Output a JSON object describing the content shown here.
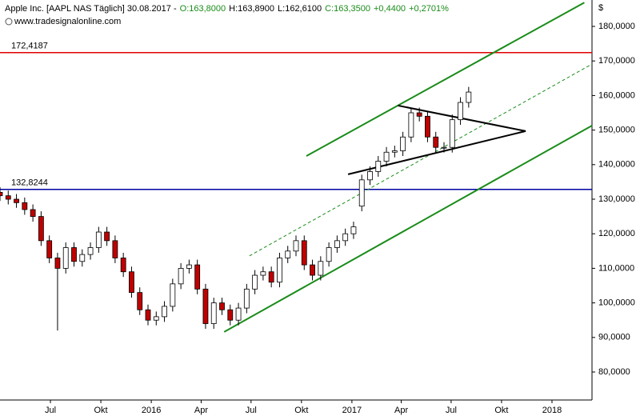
{
  "header": {
    "title": "Apple Inc. [AAPL NAS  Täglich] 30.08.2017 -",
    "open": "O:163,8000",
    "high": "H:163,8900",
    "low": "L:162,6100",
    "close": "C:163,3500",
    "change": "+0,4400",
    "change_pct": "+0,2701%",
    "source": "www.tradesignalonline.com"
  },
  "chart_data": {
    "type": "candlestick",
    "y_unit": "$",
    "x": [
      "2015-03-31",
      "2015-04-15",
      "2015-04-30",
      "2015-05-15",
      "2015-05-30",
      "2015-06-14",
      "2015-06-29",
      "2015-07-14",
      "2015-07-29",
      "2015-08-13",
      "2015-08-28",
      "2015-09-12",
      "2015-09-27",
      "2015-10-12",
      "2015-10-27",
      "2015-11-11",
      "2015-11-26",
      "2015-12-11",
      "2015-12-26",
      "2016-01-10",
      "2016-01-25",
      "2016-02-09",
      "2016-02-24",
      "2016-03-10",
      "2016-03-25",
      "2016-04-09",
      "2016-04-24",
      "2016-05-09",
      "2016-05-24",
      "2016-06-08",
      "2016-06-23",
      "2016-07-08",
      "2016-07-23",
      "2016-08-07",
      "2016-08-22",
      "2016-09-06",
      "2016-09-21",
      "2016-10-06",
      "2016-10-21",
      "2016-11-05",
      "2016-11-20",
      "2016-12-05",
      "2016-12-20",
      "2017-01-04",
      "2017-01-19",
      "2017-02-03",
      "2017-02-18",
      "2017-03-05",
      "2017-03-20",
      "2017-04-04",
      "2017-04-19",
      "2017-05-04",
      "2017-05-19",
      "2017-06-03",
      "2017-06-18",
      "2017-07-03",
      "2017-07-18",
      "2017-08-02"
    ],
    "open": [
      132,
      131,
      130,
      129,
      127,
      125,
      118,
      113,
      110,
      116,
      112,
      114,
      116,
      120.5,
      118,
      113,
      109,
      103,
      98,
      95,
      96,
      99,
      105.5,
      110,
      111,
      104,
      94,
      100,
      98,
      95,
      98.5,
      104,
      108,
      109,
      106,
      113,
      115,
      118,
      111,
      108,
      112,
      116,
      118,
      120,
      128,
      135.6,
      138,
      141,
      143.6,
      144,
      148,
      155,
      154,
      148,
      145,
      145,
      153,
      158
    ],
    "high": [
      133.5,
      132.5,
      131.5,
      130.5,
      128.5,
      126.5,
      119.5,
      114.5,
      117.5,
      117.5,
      115.5,
      117.5,
      122,
      122,
      119.5,
      114.5,
      110.5,
      104.5,
      99.5,
      97.5,
      100.5,
      107,
      111.5,
      112.5,
      112.5,
      105.5,
      101.5,
      101.5,
      99.5,
      100,
      105.5,
      109.5,
      110.5,
      110.5,
      114.5,
      116.5,
      119.5,
      119.5,
      112.5,
      113.5,
      117.5,
      119.5,
      121.5,
      123.5,
      137.1,
      139.5,
      142.5,
      145.1,
      145.5,
      149.5,
      156.5,
      156.5,
      155.5,
      149.5,
      146.5,
      154.5,
      159.5,
      162.5
    ],
    "low": [
      129.5,
      128.5,
      127.5,
      125.5,
      123.5,
      116.5,
      111.5,
      92,
      108.5,
      110.5,
      110.5,
      112.5,
      114.5,
      116.5,
      111.5,
      107.5,
      101.5,
      96.5,
      93.5,
      93.5,
      94.5,
      97.5,
      104,
      108.5,
      102.5,
      92.5,
      92.5,
      96.5,
      93.5,
      93.5,
      97,
      102.5,
      106.5,
      104.5,
      104.5,
      111.5,
      113.5,
      109.5,
      106.5,
      106.5,
      110.5,
      114.5,
      116.5,
      118.5,
      126.5,
      134.1,
      136.5,
      139.5,
      142.1,
      142.5,
      146.5,
      152.5,
      146.5,
      143.5,
      143.5,
      143.5,
      151.5,
      156.5
    ],
    "close": [
      131,
      130,
      129,
      127,
      125,
      118,
      113,
      110,
      116,
      112,
      114,
      116,
      120.5,
      118,
      113,
      109,
      103,
      98,
      95,
      96,
      99,
      105.5,
      110,
      111,
      104,
      94,
      100,
      98,
      95,
      98.5,
      104,
      108,
      109,
      106,
      113,
      115,
      118,
      111,
      108,
      112,
      116,
      118,
      120,
      122,
      135.6,
      138,
      141,
      143.6,
      144,
      148,
      155,
      154,
      148,
      145,
      145,
      153,
      158,
      161
    ],
    "up_color": "#ffffff",
    "down_color": "#c00000",
    "xlim": [
      "2015-03-31",
      "2018-03-15"
    ],
    "xticks": [
      {
        "value": "2015-07-01",
        "label": "Jul"
      },
      {
        "value": "2015-10-01",
        "label": "Okt"
      },
      {
        "value": "2016-01-01",
        "label": "2016"
      },
      {
        "value": "2016-04-01",
        "label": "Apr"
      },
      {
        "value": "2016-07-01",
        "label": "Jul"
      },
      {
        "value": "2016-10-01",
        "label": "Okt"
      },
      {
        "value": "2017-01-01",
        "label": "2017"
      },
      {
        "value": "2017-04-01",
        "label": "Apr"
      },
      {
        "value": "2017-07-01",
        "label": "Jul"
      },
      {
        "value": "2017-10-01",
        "label": "Okt"
      },
      {
        "value": "2018-01-01",
        "label": "2018"
      }
    ],
    "ylim": [
      71.9,
      187.64
    ],
    "yticks": [
      {
        "value": 80,
        "label": "80,0000"
      },
      {
        "value": 90,
        "label": "90,0000"
      },
      {
        "value": 100,
        "label": "100,0000"
      },
      {
        "value": 110,
        "label": "110,0000"
      },
      {
        "value": 120,
        "label": "120,0000"
      },
      {
        "value": 130,
        "label": "130,0000"
      },
      {
        "value": 140,
        "label": "140,0000"
      },
      {
        "value": 150,
        "label": "150,0000"
      },
      {
        "value": 160,
        "label": "160,0000"
      },
      {
        "value": 170,
        "label": "170,0000"
      },
      {
        "value": 180,
        "label": "180,0000"
      }
    ],
    "hlines": [
      {
        "value": 172.4187,
        "label": "172,4187",
        "color": "#e00000"
      },
      {
        "value": 132.8244,
        "label": "132,8244",
        "color": "#0000a0"
      }
    ],
    "trendlines": [
      {
        "color": "#1a8c1a",
        "dashed": false,
        "x": [
          "2016-10-10",
          "2018-03-01"
        ],
        "y": [
          142.5,
          186.9
        ]
      },
      {
        "color": "#1a8c1a",
        "dashed": false,
        "x": [
          "2016-05-13",
          "2018-03-15"
        ],
        "y": [
          91.6,
          151.3
        ]
      },
      {
        "color": "#1a8c1a",
        "dashed": true,
        "x": [
          "2016-06-28",
          "2018-03-15"
        ],
        "y": [
          113.6,
          169.1
        ]
      },
      {
        "color": "#000000",
        "dashed": false,
        "x": [
          "2017-03-26",
          "2017-11-14"
        ],
        "y": [
          157.1,
          149.7
        ]
      },
      {
        "color": "#000000",
        "dashed": false,
        "x": [
          "2016-12-25",
          "2017-11-14"
        ],
        "y": [
          137.2,
          149.7
        ]
      }
    ]
  }
}
